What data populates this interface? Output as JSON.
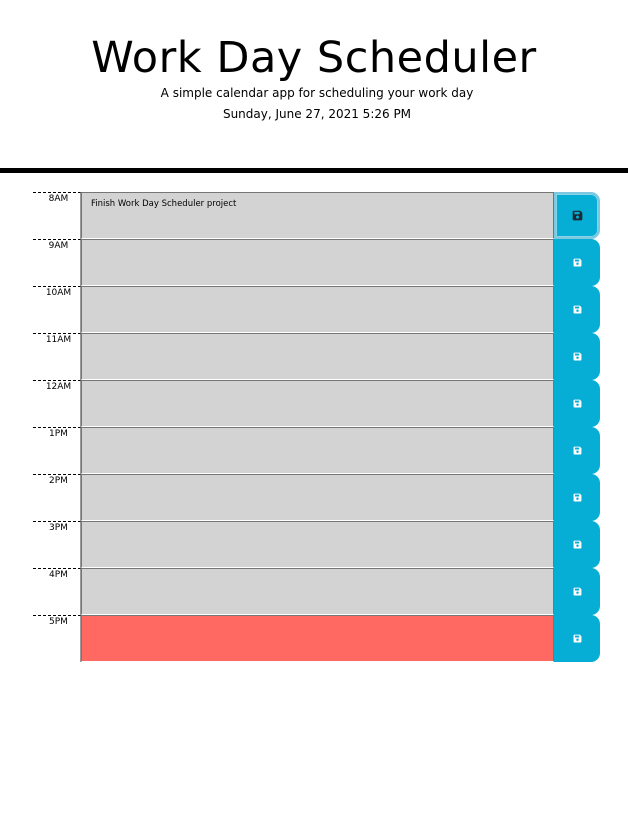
{
  "header": {
    "title": "Work Day Scheduler",
    "subtitle": "A simple calendar app for scheduling your work day",
    "current_day": "Sunday, June 27, 2021 5:26 PM"
  },
  "colors": {
    "past": "#d3d3d3",
    "present": "#ff6961",
    "save_button": "#06aed5",
    "divider": "#000000"
  },
  "timeblocks": [
    {
      "hour": "8AM",
      "text": "Finish Work Day Scheduler project",
      "state": "past",
      "save_icon": "floppy-disk-icon"
    },
    {
      "hour": "9AM",
      "text": "",
      "state": "past",
      "save_icon": "floppy-disk-icon"
    },
    {
      "hour": "10AM",
      "text": "",
      "state": "past",
      "save_icon": "floppy-disk-icon"
    },
    {
      "hour": "11AM",
      "text": "",
      "state": "past",
      "save_icon": "floppy-disk-icon"
    },
    {
      "hour": "12AM",
      "text": "",
      "state": "past",
      "save_icon": "floppy-disk-icon"
    },
    {
      "hour": "1PM",
      "text": "",
      "state": "past",
      "save_icon": "floppy-disk-icon"
    },
    {
      "hour": "2PM",
      "text": "",
      "state": "past",
      "save_icon": "floppy-disk-icon"
    },
    {
      "hour": "3PM",
      "text": "",
      "state": "past",
      "save_icon": "floppy-disk-icon"
    },
    {
      "hour": "4PM",
      "text": "",
      "state": "past",
      "save_icon": "floppy-disk-icon"
    },
    {
      "hour": "5PM",
      "text": "",
      "state": "present",
      "save_icon": "floppy-disk-icon"
    }
  ]
}
